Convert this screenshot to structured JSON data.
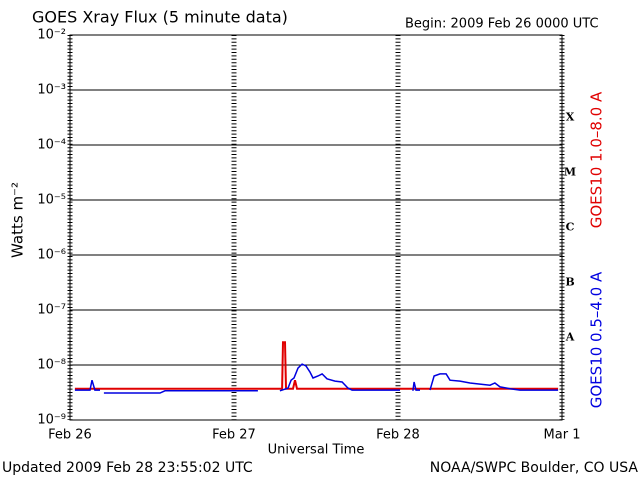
{
  "chart_data": {
    "type": "line",
    "title": "GOES Xray Flux (5 minute data)",
    "subtitle": "Begin:  2009 Feb 26 0000 UTC",
    "y_label": "Watts m⁻²",
    "x_label": "Universal Time",
    "footer_left": "Updated 2009 Feb 28 23:55:02 UTC",
    "footer_right": "NOAA/SWPC Boulder, CO USA",
    "flare_classes": [
      "X",
      "M",
      "C",
      "B",
      "A"
    ],
    "log_y": true,
    "grid": true,
    "xlim": [
      0,
      3
    ],
    "xticks": [
      {
        "value": 0,
        "label": "Feb 26"
      },
      {
        "value": 1,
        "label": "Feb 27"
      },
      {
        "value": 2,
        "label": "Feb 28"
      },
      {
        "value": 3,
        "label": "Mar 1"
      }
    ],
    "ylim": [
      1e-09,
      0.01
    ],
    "yticks": [
      {
        "value": 1e-09,
        "label": "10⁻⁹"
      },
      {
        "value": 1e-08,
        "label": "10⁻⁸"
      },
      {
        "value": 1e-07,
        "label": "10⁻⁷"
      },
      {
        "value": 1e-06,
        "label": "10⁻⁶"
      },
      {
        "value": 1e-05,
        "label": "10⁻⁵"
      },
      {
        "value": 0.0001,
        "label": "10⁻⁴"
      },
      {
        "value": 0.001,
        "label": "10⁻³"
      },
      {
        "value": 0.01,
        "label": "10⁻²"
      }
    ],
    "series": [
      {
        "name": "GOES10 1.0–8.0 A",
        "color": "#e00000",
        "x": [
          0.03,
          1.28,
          1.293,
          1.299,
          1.311,
          1.317,
          1.36,
          1.372,
          1.384,
          2.976
        ],
        "values": [
          3.7e-09,
          3.7e-09,
          3.7e-09,
          2.6e-08,
          2.6e-08,
          3.7e-09,
          3.7e-09,
          5.3e-09,
          3.7e-09,
          3.7e-09
        ]
      },
      {
        "name": "GOES10 0.5–4.0 A",
        "color": "#0000e0",
        "x": [
          0.03,
          0.122,
          0.134,
          0.152,
          0.183,
          0.195,
          0.207,
          0.549,
          0.579,
          1.146,
          1.213,
          1.28,
          1.329,
          1.348,
          1.366,
          1.39,
          1.415,
          1.439,
          1.463,
          1.482,
          1.512,
          1.537,
          1.567,
          1.616,
          1.659,
          1.695,
          1.72,
          2.012,
          2.05,
          2.091,
          2.098,
          2.11,
          2.134,
          2.165,
          2.195,
          2.22,
          2.256,
          2.293,
          2.317,
          2.378,
          2.439,
          2.5,
          2.561,
          2.591,
          2.622,
          2.683,
          2.744,
          2.976
        ],
        "values": [
          3.5e-09,
          3.5e-09,
          5.3e-09,
          3.5e-09,
          3.5e-09,
          null,
          3.1e-09,
          3.1e-09,
          3.4e-09,
          3.4e-09,
          null,
          3.4e-09,
          3.8e-09,
          5.3e-09,
          5.8e-09,
          8.8e-09,
          1.04e-08,
          9.6e-09,
          7.5e-09,
          5.8e-09,
          6.3e-09,
          6.9e-09,
          5.6e-09,
          5.1e-09,
          4.9e-09,
          3.8e-09,
          3.5e-09,
          3.5e-09,
          null,
          3.4e-09,
          4.9e-09,
          3.5e-09,
          3.5e-09,
          null,
          3.5e-09,
          6.3e-09,
          6.9e-09,
          6.9e-09,
          5.3e-09,
          5.1e-09,
          4.7e-09,
          4.5e-09,
          4.3e-09,
          4.7e-09,
          4e-09,
          3.7e-09,
          3.5e-09,
          3.5e-09
        ]
      }
    ]
  }
}
